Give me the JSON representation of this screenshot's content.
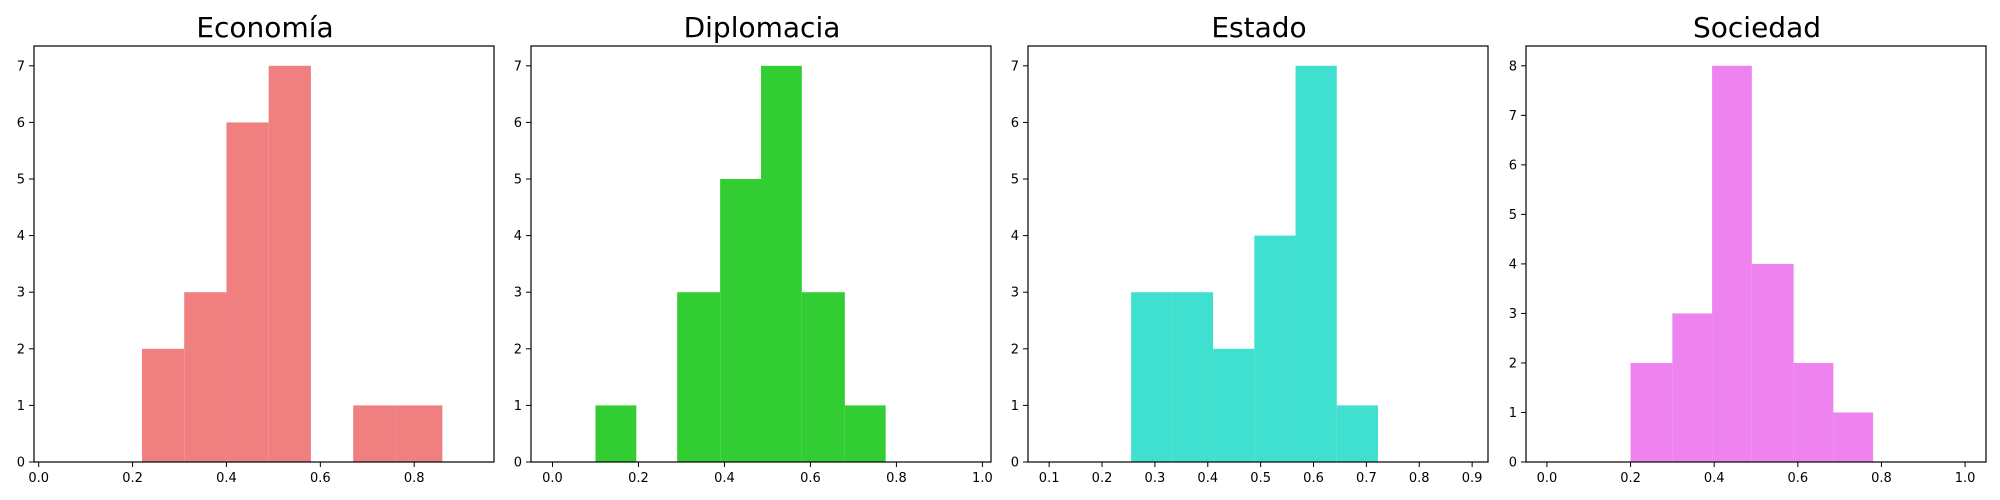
{
  "chart_data": [
    {
      "type": "bar",
      "title": "Economía",
      "color": "#f08080",
      "xlim": [
        -0.01,
        0.97
      ],
      "ylim": [
        0,
        7.35
      ],
      "xticks": [
        "0.0",
        "0.2",
        "0.4",
        "0.6",
        "0.8"
      ],
      "xtick_values": [
        0.0,
        0.2,
        0.4,
        0.6,
        0.8
      ],
      "yticks": [
        "0",
        "1",
        "2",
        "3",
        "4",
        "5",
        "6",
        "7"
      ],
      "ytick_values": [
        0,
        1,
        2,
        3,
        4,
        5,
        6,
        7
      ],
      "bins": [
        {
          "x0": 0.22,
          "x1": 0.31,
          "count": 2
        },
        {
          "x0": 0.31,
          "x1": 0.4,
          "count": 3
        },
        {
          "x0": 0.4,
          "x1": 0.49,
          "count": 6
        },
        {
          "x0": 0.49,
          "x1": 0.58,
          "count": 7
        },
        {
          "x0": 0.58,
          "x1": 0.67,
          "count": 0
        },
        {
          "x0": 0.67,
          "x1": 0.76,
          "count": 1
        },
        {
          "x0": 0.76,
          "x1": 0.86,
          "count": 1
        }
      ]
    },
    {
      "type": "bar",
      "title": "Diplomacia",
      "color": "#32cd32",
      "xlim": [
        -0.05,
        1.02
      ],
      "ylim": [
        0,
        7.35
      ],
      "xticks": [
        "0.0",
        "0.2",
        "0.4",
        "0.6",
        "0.8",
        "1.0"
      ],
      "xtick_values": [
        0.0,
        0.2,
        0.4,
        0.6,
        0.8,
        1.0
      ],
      "yticks": [
        "0",
        "1",
        "2",
        "3",
        "4",
        "5",
        "6",
        "7"
      ],
      "ytick_values": [
        0,
        1,
        2,
        3,
        4,
        5,
        6,
        7
      ],
      "bins": [
        {
          "x0": 0.1,
          "x1": 0.195,
          "count": 1
        },
        {
          "x0": 0.195,
          "x1": 0.29,
          "count": 0
        },
        {
          "x0": 0.29,
          "x1": 0.39,
          "count": 3
        },
        {
          "x0": 0.39,
          "x1": 0.485,
          "count": 5
        },
        {
          "x0": 0.485,
          "x1": 0.58,
          "count": 7
        },
        {
          "x0": 0.58,
          "x1": 0.68,
          "count": 3
        },
        {
          "x0": 0.68,
          "x1": 0.775,
          "count": 1
        }
      ]
    },
    {
      "type": "bar",
      "title": "Estado",
      "color": "#40e0d0",
      "xlim": [
        0.06,
        0.93
      ],
      "ylim": [
        0,
        7.35
      ],
      "xticks": [
        "0.1",
        "0.2",
        "0.3",
        "0.4",
        "0.5",
        "0.6",
        "0.7",
        "0.8",
        "0.9"
      ],
      "xtick_values": [
        0.1,
        0.2,
        0.3,
        0.4,
        0.5,
        0.6,
        0.7,
        0.8,
        0.9
      ],
      "yticks": [
        "0",
        "1",
        "2",
        "3",
        "4",
        "5",
        "6",
        "7"
      ],
      "ytick_values": [
        0,
        1,
        2,
        3,
        4,
        5,
        6,
        7
      ],
      "bins": [
        {
          "x0": 0.255,
          "x1": 0.333,
          "count": 3
        },
        {
          "x0": 0.333,
          "x1": 0.41,
          "count": 3
        },
        {
          "x0": 0.41,
          "x1": 0.488,
          "count": 2
        },
        {
          "x0": 0.488,
          "x1": 0.566,
          "count": 4
        },
        {
          "x0": 0.566,
          "x1": 0.644,
          "count": 7
        },
        {
          "x0": 0.644,
          "x1": 0.722,
          "count": 1
        }
      ]
    },
    {
      "type": "bar",
      "title": "Sociedad",
      "color": "#ee82ee",
      "xlim": [
        -0.05,
        1.05
      ],
      "ylim": [
        0,
        8.4
      ],
      "xticks": [
        "0.0",
        "0.2",
        "0.4",
        "0.6",
        "0.8",
        "1.0"
      ],
      "xtick_values": [
        0.0,
        0.2,
        0.4,
        0.6,
        0.8,
        1.0
      ],
      "yticks": [
        "0",
        "1",
        "2",
        "3",
        "4",
        "5",
        "6",
        "7",
        "8"
      ],
      "ytick_values": [
        0,
        1,
        2,
        3,
        4,
        5,
        6,
        7,
        8
      ],
      "bins": [
        {
          "x0": 0.2,
          "x1": 0.3,
          "count": 2
        },
        {
          "x0": 0.3,
          "x1": 0.395,
          "count": 3
        },
        {
          "x0": 0.395,
          "x1": 0.49,
          "count": 8
        },
        {
          "x0": 0.49,
          "x1": 0.59,
          "count": 4
        },
        {
          "x0": 0.59,
          "x1": 0.685,
          "count": 2
        },
        {
          "x0": 0.685,
          "x1": 0.78,
          "count": 1
        }
      ]
    }
  ]
}
